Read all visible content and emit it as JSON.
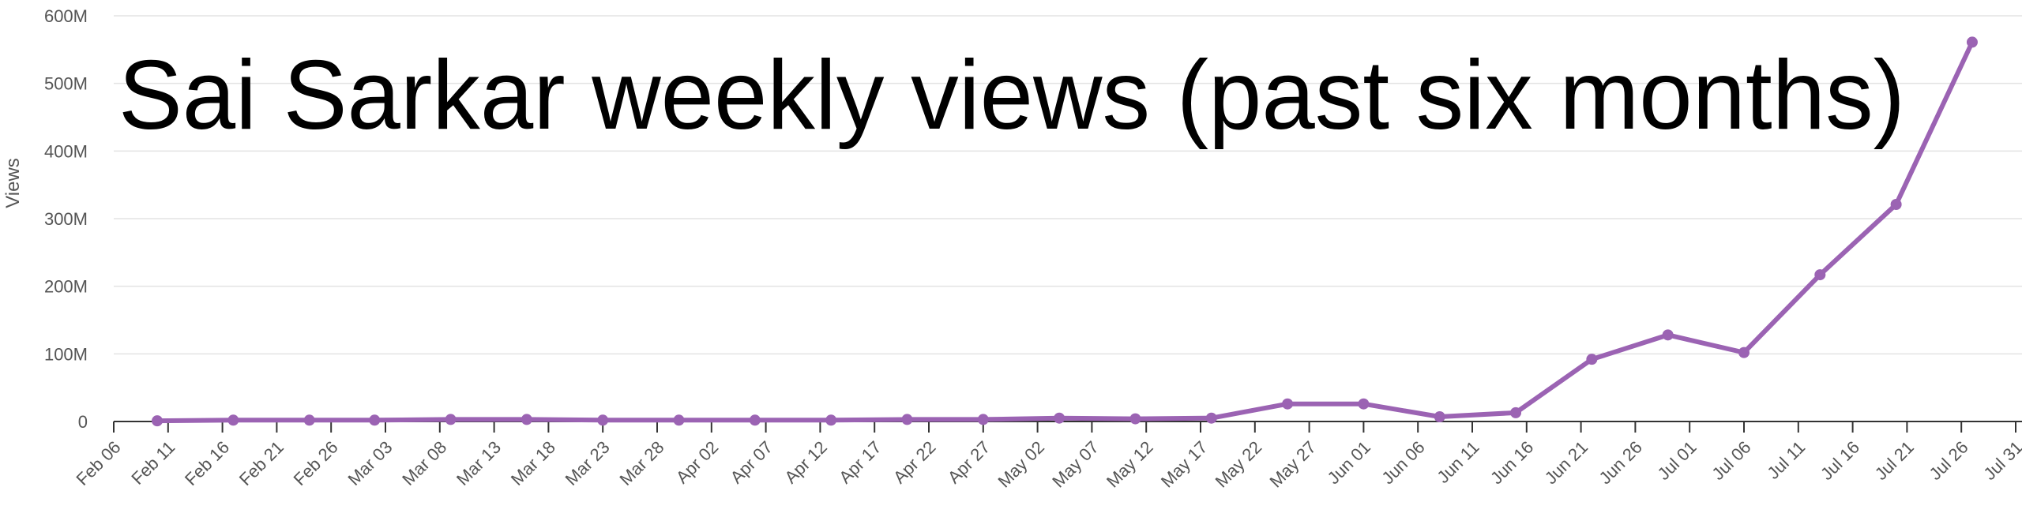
{
  "chart_data": {
    "type": "line",
    "title": "Sai Sarkar weekly views (past six months)",
    "y_label": "Views",
    "x": [
      "Feb 10",
      "Feb 17",
      "Feb 24",
      "Mar 02",
      "Mar 09",
      "Mar 16",
      "Mar 23",
      "Mar 30",
      "Apr 06",
      "Apr 13",
      "Apr 20",
      "Apr 27",
      "May 04",
      "May 11",
      "May 18",
      "May 25",
      "Jun 01",
      "Jun 08",
      "Jun 15",
      "Jun 22",
      "Jun 29",
      "Jul 06",
      "Jul 13",
      "Jul 20",
      "Jul 27"
    ],
    "series": [
      {
        "name": "Views",
        "color": "#9b63b3",
        "values": [
          1,
          2,
          2,
          2,
          3,
          3,
          2,
          2,
          2,
          2,
          3,
          3,
          5,
          4,
          5,
          26,
          26,
          7,
          13,
          92,
          128,
          102,
          217,
          321,
          561
        ]
      }
    ],
    "xlim": [
      "Feb 06",
      "Jul 31"
    ],
    "xticks": [
      "Feb 06",
      "Feb 11",
      "Feb 16",
      "Feb 21",
      "Feb 26",
      "Mar 03",
      "Mar 08",
      "Mar 13",
      "Mar 18",
      "Mar 23",
      "Mar 28",
      "Apr 02",
      "Apr 07",
      "Apr 12",
      "Apr 17",
      "Apr 22",
      "Apr 27",
      "May 02",
      "May 07",
      "May 12",
      "May 17",
      "May 22",
      "May 27",
      "Jun 01",
      "Jun 06",
      "Jun 11",
      "Jun 16",
      "Jun 21",
      "Jun 26",
      "Jul 01",
      "Jul 06",
      "Jul 11",
      "Jul 16",
      "Jul 21",
      "Jul 26",
      "Jul 31"
    ],
    "ylim": [
      0,
      600
    ],
    "yticks": [
      0,
      {
        "value": 100,
        "label": "100M"
      },
      {
        "value": 200,
        "label": "200M"
      },
      {
        "value": 300,
        "label": "300M"
      },
      {
        "value": 400,
        "label": "400M"
      },
      {
        "value": 500,
        "label": "500M"
      },
      {
        "value": 600,
        "label": "600M"
      }
    ],
    "grid": true
  }
}
